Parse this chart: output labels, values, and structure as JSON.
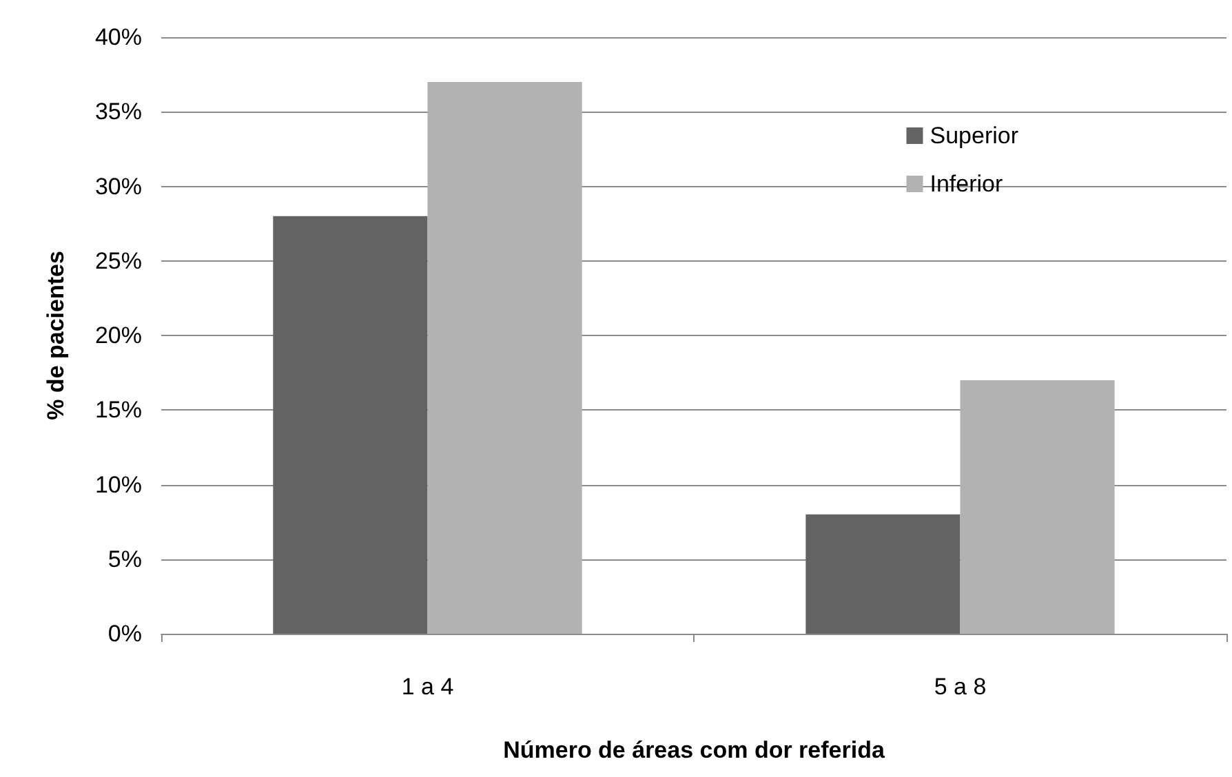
{
  "chart_data": {
    "type": "bar",
    "xlabel": "Número de áreas com dor referida",
    "ylabel": "% de pacientes",
    "categories": [
      "1 a 4",
      "5 a 8"
    ],
    "series": [
      {
        "name": "Superior",
        "color": "#636363",
        "values": [
          28,
          8
        ]
      },
      {
        "name": "Inferior",
        "color": "#b2b2b2",
        "values": [
          37,
          17
        ]
      }
    ],
    "ylim": [
      0,
      40
    ],
    "yticks": [
      {
        "value": 0,
        "label": "0%"
      },
      {
        "value": 5,
        "label": "5%"
      },
      {
        "value": 10,
        "label": "10%"
      },
      {
        "value": 15,
        "label": "15%"
      },
      {
        "value": 20,
        "label": "20%"
      },
      {
        "value": 25,
        "label": "25%"
      },
      {
        "value": 30,
        "label": "30%"
      },
      {
        "value": 35,
        "label": "35%"
      },
      {
        "value": 40,
        "label": "40%"
      }
    ],
    "grid": "y",
    "legend": "top right"
  }
}
